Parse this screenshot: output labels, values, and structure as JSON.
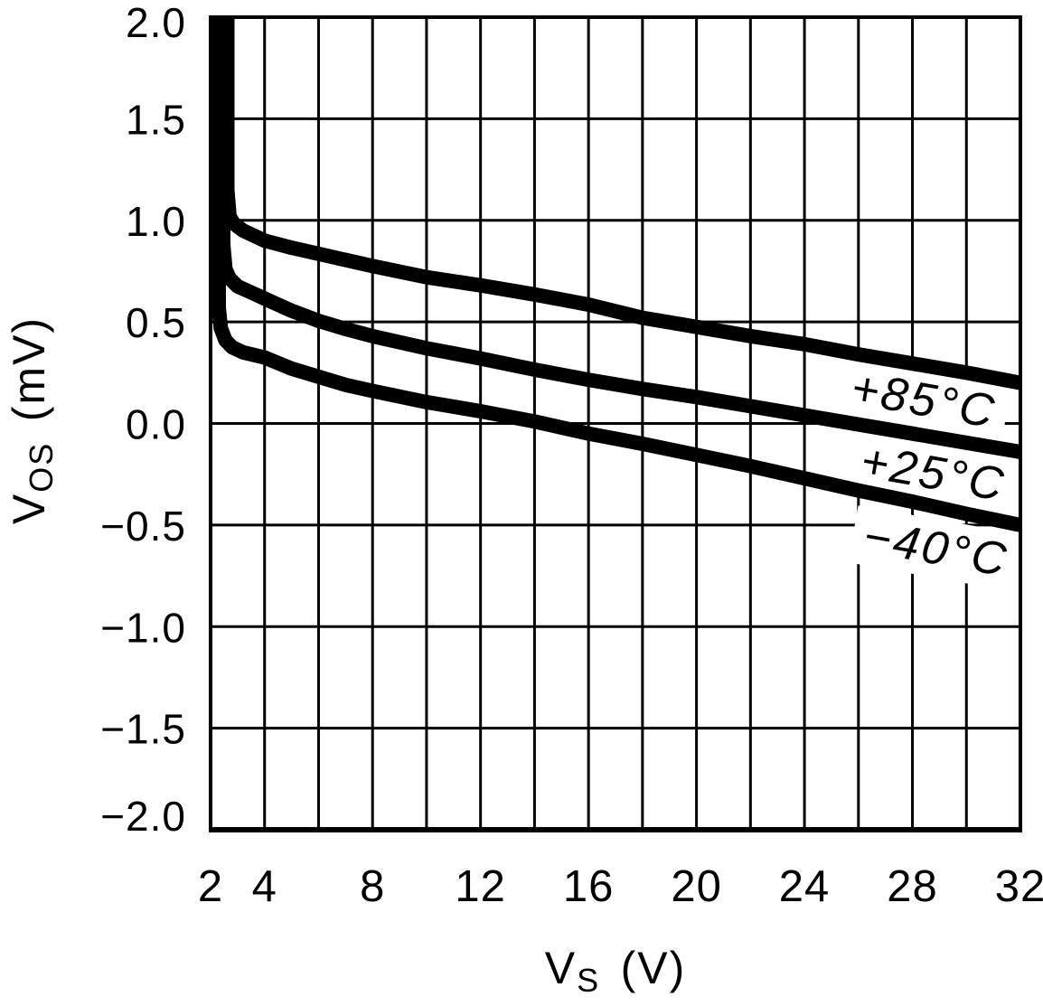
{
  "figure": {
    "background": "#ffffff",
    "ink_color": "#000000"
  },
  "chart_data": {
    "type": "line",
    "title": "",
    "xlabel": "VS (V)",
    "ylabel": "VOS (mV)",
    "xlabel_parts": {
      "main": "V",
      "sub": "S",
      "unit": "(V)"
    },
    "ylabel_parts": {
      "main": "V",
      "sub": "OS",
      "unit": "(mV)"
    },
    "xlim": [
      2,
      32
    ],
    "ylim": [
      -2.0,
      2.0
    ],
    "x_grid_step": 2,
    "y_grid_step": 0.5,
    "grid": true,
    "legend_position": "inline-curve-labels",
    "x_ticks": [
      {
        "v": 2,
        "label": "2"
      },
      {
        "v": 4,
        "label": "4"
      },
      {
        "v": 8,
        "label": "8"
      },
      {
        "v": 12,
        "label": "12"
      },
      {
        "v": 16,
        "label": "16"
      },
      {
        "v": 20,
        "label": "20"
      },
      {
        "v": 24,
        "label": "24"
      },
      {
        "v": 28,
        "label": "28"
      },
      {
        "v": 32,
        "label": "32"
      }
    ],
    "y_ticks": [
      {
        "v": 2.0,
        "label": "2.0"
      },
      {
        "v": 1.5,
        "label": "1.5"
      },
      {
        "v": 1.0,
        "label": "1.0"
      },
      {
        "v": 0.5,
        "label": "0.5"
      },
      {
        "v": 0.0,
        "label": "0.0"
      },
      {
        "v": -0.5,
        "label": "−0.5"
      },
      {
        "v": -1.0,
        "label": "−1.0"
      },
      {
        "v": -1.5,
        "label": "−1.5"
      },
      {
        "v": -2.0,
        "label": "−2.0"
      }
    ],
    "series": [
      {
        "id": "85c",
        "name": "+85°C",
        "label": "+85°C",
        "label_at": {
          "x": 28.4,
          "y": 0.1,
          "angle": 10
        },
        "points": [
          [
            2.62,
            2.0
          ],
          [
            2.62,
            1.15
          ],
          [
            2.7,
            1.02
          ],
          [
            2.85,
            0.985
          ],
          [
            3.2,
            0.95
          ],
          [
            4,
            0.9
          ],
          [
            5,
            0.865
          ],
          [
            6,
            0.835
          ],
          [
            7,
            0.805
          ],
          [
            8,
            0.775
          ],
          [
            10,
            0.72
          ],
          [
            12,
            0.68
          ],
          [
            14,
            0.635
          ],
          [
            16,
            0.585
          ],
          [
            18,
            0.52
          ],
          [
            20,
            0.475
          ],
          [
            22,
            0.43
          ],
          [
            24,
            0.39
          ],
          [
            26,
            0.34
          ],
          [
            28,
            0.295
          ],
          [
            30,
            0.25
          ],
          [
            32,
            0.2
          ]
        ]
      },
      {
        "id": "25c",
        "name": "+25°C",
        "label": "+25°C",
        "label_at": {
          "x": 28.75,
          "y": -0.26,
          "angle": 10
        },
        "points": [
          [
            2.47,
            2.0
          ],
          [
            2.47,
            0.88
          ],
          [
            2.55,
            0.76
          ],
          [
            2.7,
            0.715
          ],
          [
            3.0,
            0.675
          ],
          [
            3.5,
            0.645
          ],
          [
            4,
            0.615
          ],
          [
            5,
            0.555
          ],
          [
            6,
            0.505
          ],
          [
            7,
            0.465
          ],
          [
            8,
            0.43
          ],
          [
            10,
            0.37
          ],
          [
            12,
            0.32
          ],
          [
            14,
            0.265
          ],
          [
            16,
            0.215
          ],
          [
            18,
            0.17
          ],
          [
            20,
            0.13
          ],
          [
            22,
            0.085
          ],
          [
            24,
            0.04
          ],
          [
            26,
            -0.005
          ],
          [
            28,
            -0.05
          ],
          [
            30,
            -0.095
          ],
          [
            32,
            -0.14
          ]
        ]
      },
      {
        "id": "m40c",
        "name": "−40°C",
        "label": "−40°C",
        "label_at": {
          "x": 28.85,
          "y": -0.63,
          "angle": 10
        },
        "points": [
          [
            2.3,
            2.0
          ],
          [
            2.3,
            0.57
          ],
          [
            2.38,
            0.47
          ],
          [
            2.55,
            0.41
          ],
          [
            2.8,
            0.375
          ],
          [
            3.2,
            0.35
          ],
          [
            4,
            0.325
          ],
          [
            5,
            0.27
          ],
          [
            6,
            0.23
          ],
          [
            7,
            0.19
          ],
          [
            8,
            0.16
          ],
          [
            10,
            0.105
          ],
          [
            12,
            0.06
          ],
          [
            14,
            0.01
          ],
          [
            16,
            -0.05
          ],
          [
            18,
            -0.1
          ],
          [
            20,
            -0.155
          ],
          [
            22,
            -0.21
          ],
          [
            24,
            -0.27
          ],
          [
            26,
            -0.33
          ],
          [
            28,
            -0.385
          ],
          [
            30,
            -0.445
          ],
          [
            32,
            -0.5
          ]
        ]
      }
    ]
  }
}
